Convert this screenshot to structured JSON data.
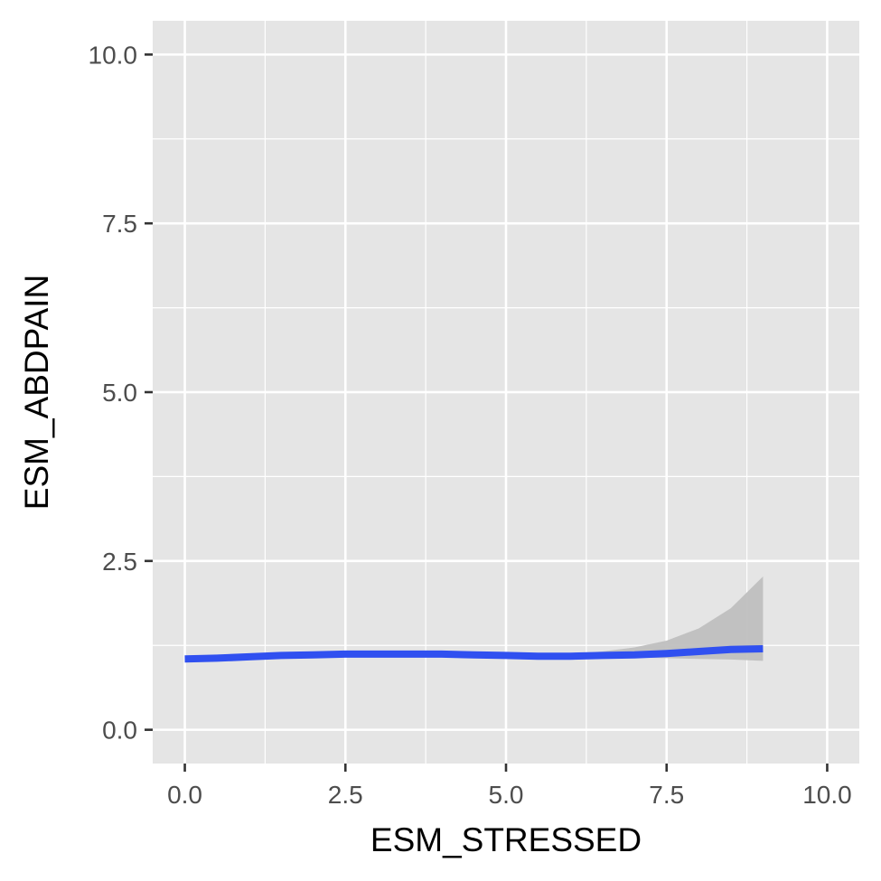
{
  "chart_data": {
    "type": "line",
    "title": "",
    "xlabel": "ESM_STRESSED",
    "ylabel": "ESM_ABDPAIN",
    "xlim": [
      -0.5,
      10.5
    ],
    "ylim": [
      -0.5,
      10.5
    ],
    "x_ticks": [
      "0.0",
      "2.5",
      "5.0",
      "7.5",
      "10.0"
    ],
    "y_ticks": [
      "0.0",
      "2.5",
      "5.0",
      "7.5",
      "10.0"
    ],
    "grid": true,
    "panel_color": "#e5e5e5",
    "grid_color": "#ffffff",
    "series": [
      {
        "x": [
          0,
          0.5,
          1,
          1.5,
          2,
          2.5,
          3,
          3.5,
          4,
          4.5,
          5,
          5.5,
          6,
          6.5,
          7,
          7.5,
          8,
          8.5,
          9
        ],
        "y": [
          1.05,
          1.06,
          1.08,
          1.1,
          1.11,
          1.12,
          1.12,
          1.12,
          1.12,
          1.11,
          1.1,
          1.09,
          1.09,
          1.1,
          1.11,
          1.13,
          1.16,
          1.19,
          1.2
        ],
        "ymin": [
          1.01,
          1.03,
          1.06,
          1.08,
          1.09,
          1.1,
          1.1,
          1.1,
          1.1,
          1.09,
          1.08,
          1.07,
          1.07,
          1.07,
          1.07,
          1.06,
          1.05,
          1.04,
          1.02
        ],
        "ymax": [
          1.09,
          1.09,
          1.1,
          1.12,
          1.13,
          1.14,
          1.14,
          1.14,
          1.14,
          1.13,
          1.12,
          1.12,
          1.13,
          1.16,
          1.22,
          1.32,
          1.5,
          1.8,
          2.27
        ],
        "color": "#3050f0",
        "band_color": "#bfbfbf"
      }
    ]
  }
}
